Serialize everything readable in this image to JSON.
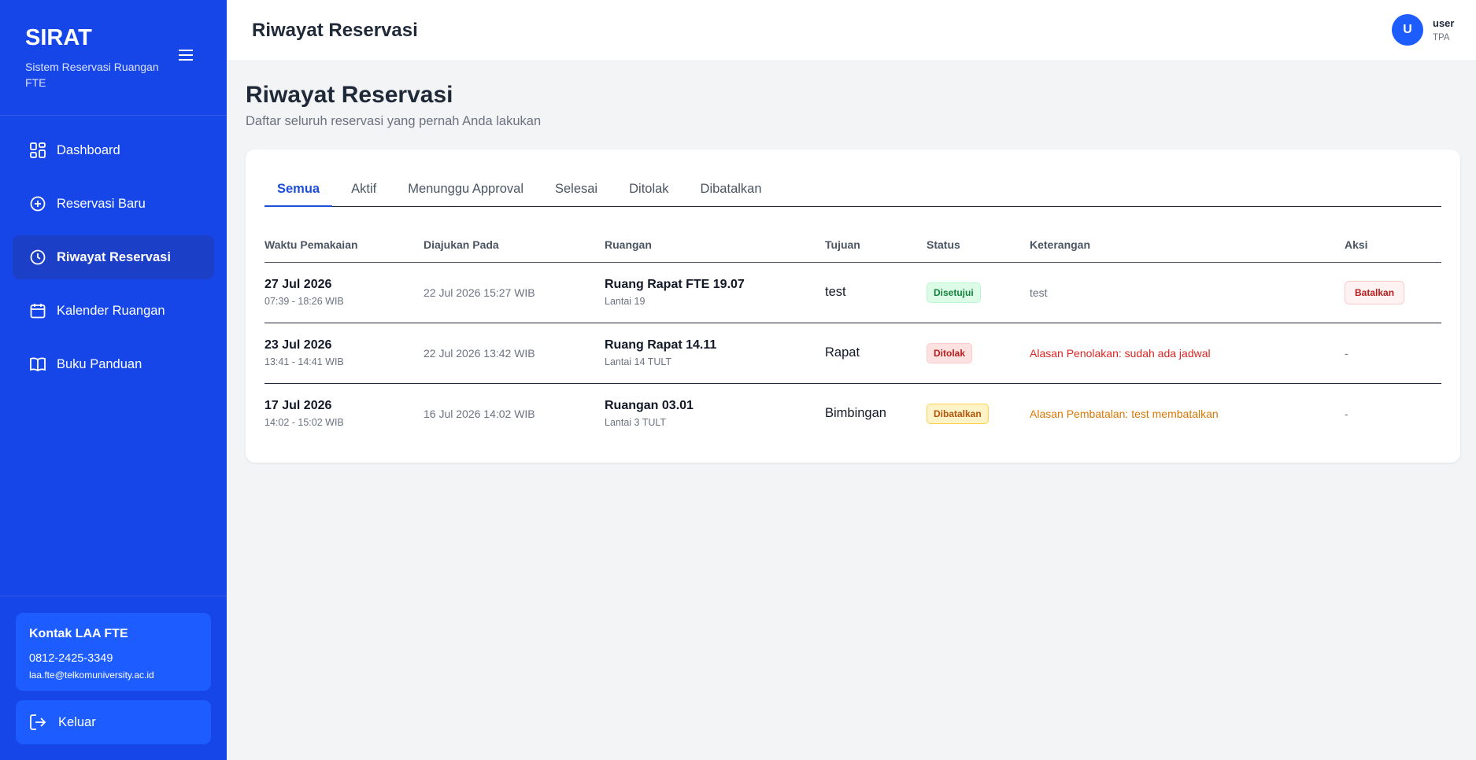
{
  "sidebar": {
    "brand": "SIRAT",
    "subtitle": "Sistem Reservasi Ruangan FTE",
    "menu": [
      "Dashboard",
      "Reservasi Baru",
      "Riwayat Reservasi",
      "Kalender Ruangan",
      "Buku Panduan"
    ],
    "contact": {
      "title": "Kontak LAA FTE",
      "phone": "0812-2425-3349",
      "email": "laa.fte@telkomuniversity.ac.id"
    },
    "logout": "Keluar"
  },
  "header": {
    "title": "Riwayat Reservasi",
    "user": {
      "avatar": "U",
      "name": "user",
      "role": "TPA"
    }
  },
  "page": {
    "title": "Riwayat Reservasi",
    "subtitle": "Daftar seluruh reservasi yang pernah Anda lakukan"
  },
  "tabs": [
    "Semua",
    "Aktif",
    "Menunggu Approval",
    "Selesai",
    "Ditolak",
    "Dibatalkan"
  ],
  "table": {
    "columns": [
      "Waktu Pemakaian",
      "Diajukan Pada",
      "Ruangan",
      "Tujuan",
      "Status",
      "Keterangan",
      "Aksi"
    ],
    "rows": [
      {
        "date": "27 Jul 2026",
        "time": "07:39 - 18:26 WIB",
        "submitted": "22 Jul 2026 15:27 WIB",
        "room": "Ruang Rapat FTE 19.07",
        "floor": "Lantai 19",
        "purpose": "test",
        "status": "Disetujui",
        "note": "test",
        "action": "Batalkan"
      },
      {
        "date": "23 Jul 2026",
        "time": "13:41 - 14:41 WIB",
        "submitted": "22 Jul 2026 13:42 WIB",
        "room": "Ruang Rapat 14.11",
        "floor": "Lantai 14 TULT",
        "purpose": "Rapat",
        "status": "Ditolak",
        "note": "Alasan Penolakan: sudah ada jadwal",
        "action": "-"
      },
      {
        "date": "17 Jul 2026",
        "time": "14:02 - 15:02 WIB",
        "submitted": "16 Jul 2026 14:02 WIB",
        "room": "Ruangan 03.01",
        "floor": "Lantai 3 TULT",
        "purpose": "Bimbingan",
        "status": "Dibatalkan",
        "note": "Alasan Pembatalan: test membatalkan",
        "action": "-"
      }
    ]
  }
}
